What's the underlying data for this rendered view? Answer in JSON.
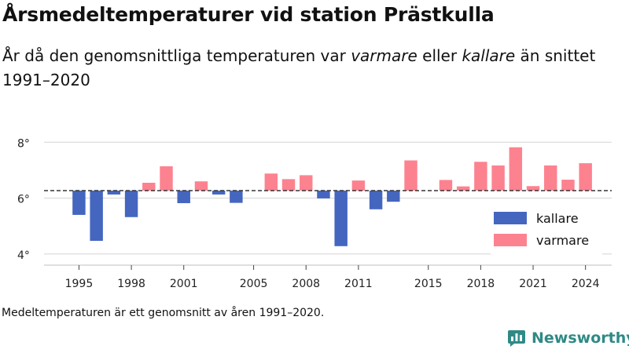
{
  "header": {
    "title": "Årsmedeltemperaturer vid station Prästkulla",
    "subtitle_part1": "År då den genomsnittliga temperaturen var ",
    "subtitle_em1": "varmare",
    "subtitle_part2": " eller ",
    "subtitle_em2": "kallare",
    "subtitle_part3": " än snittet 1991–2020"
  },
  "footer": {
    "note": "Medeltemperaturen är ett genomsnitt av åren 1991–2020.",
    "brand": "Newsworthy"
  },
  "colors": {
    "cold": "#4466bf",
    "warm": "#fd8290",
    "baseline": "#333333",
    "grid": "#dddddd",
    "brand": "#2f8a86"
  },
  "chart_data": {
    "type": "bar",
    "baseline": 6.27,
    "ylim": [
      3.6,
      8.6
    ],
    "yticks": [
      4,
      6,
      8
    ],
    "ytick_labels": [
      "4°",
      "6°",
      "8°"
    ],
    "xlim": [
      1993,
      2025.5
    ],
    "xticks": [
      1995,
      1998,
      2001,
      2005,
      2008,
      2011,
      2015,
      2018,
      2021,
      2024
    ],
    "grid": true,
    "legend_position": "bottom-right",
    "legend": [
      {
        "name": "kallare",
        "color": "#4466bf"
      },
      {
        "name": "varmare",
        "color": "#fd8290"
      }
    ],
    "x": [
      1995,
      1996,
      1997,
      1998,
      1999,
      2000,
      2001,
      2002,
      2003,
      2004,
      2005,
      2006,
      2007,
      2008,
      2009,
      2010,
      2011,
      2012,
      2013,
      2014,
      2015,
      2016,
      2017,
      2018,
      2019,
      2020,
      2021,
      2022,
      2023,
      2024
    ],
    "values": [
      5.4,
      4.47,
      6.13,
      5.32,
      6.55,
      7.14,
      5.82,
      6.6,
      6.13,
      5.83,
      null,
      6.88,
      6.68,
      6.82,
      5.99,
      4.28,
      6.63,
      5.6,
      5.87,
      7.35,
      null,
      6.65,
      6.42,
      7.3,
      7.17,
      7.82,
      6.43,
      7.17,
      6.66,
      7.25
    ]
  }
}
